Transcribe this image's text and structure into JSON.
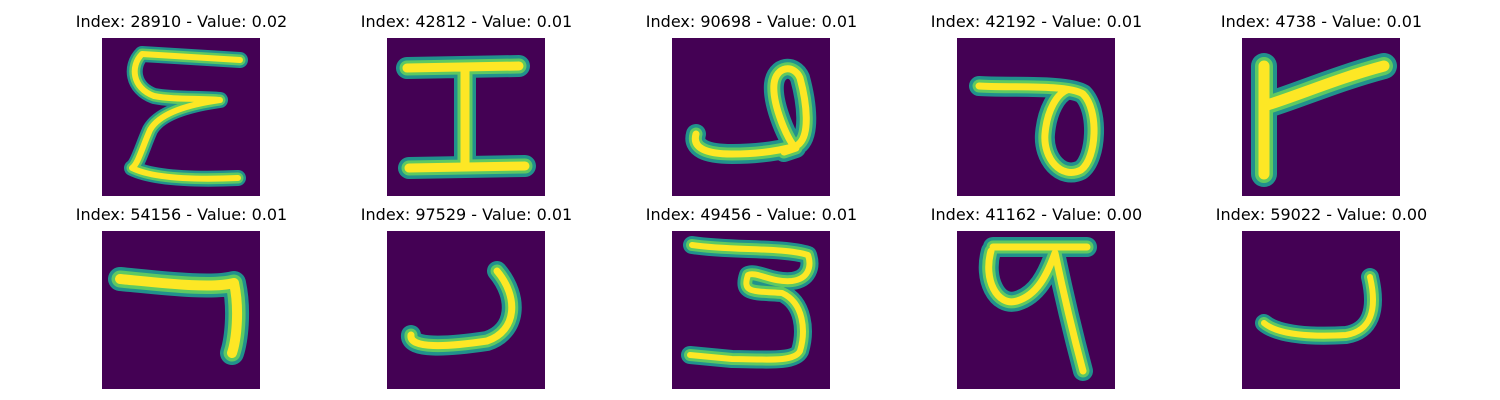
{
  "figure": {
    "background": "#ffffff",
    "image_background": "#440154",
    "stroke_outer": "#21918c",
    "stroke_mid": "#5ec962",
    "stroke_core": "#fde725",
    "panels": [
      {
        "title": "Index: 28910 - Value: 0.02",
        "glyph": "script-e"
      },
      {
        "title": "Index: 42812 - Value: 0.01",
        "glyph": "capital-i"
      },
      {
        "title": "Index: 90698 - Value: 0.01",
        "glyph": "loop-hook"
      },
      {
        "title": "Index: 42192 - Value: 0.01",
        "glyph": "bar-loop"
      },
      {
        "title": "Index: 4738 - Value: 0.01",
        "glyph": "flag"
      },
      {
        "title": "Index: 54156 - Value: 0.01",
        "glyph": "seven"
      },
      {
        "title": "Index: 97529 - Value: 0.01",
        "glyph": "hook"
      },
      {
        "title": "Index: 49456 - Value: 0.01",
        "glyph": "three"
      },
      {
        "title": "Index: 41162 - Value: 0.00",
        "glyph": "pa-loop"
      },
      {
        "title": "Index: 59022 - Value: 0.00",
        "glyph": "small-hook"
      }
    ]
  }
}
